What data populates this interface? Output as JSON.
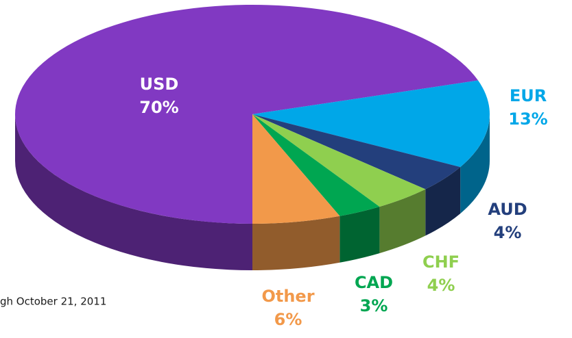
{
  "chart_data": {
    "type": "pie",
    "categories": [
      "USD",
      "EUR",
      "AUD",
      "CHF",
      "CAD",
      "Other"
    ],
    "values": [
      70,
      13,
      4,
      4,
      3,
      6
    ],
    "value_labels": [
      "70%",
      "13%",
      "4%",
      "4%",
      "3%",
      "6%"
    ],
    "colors": [
      "#8139c2",
      "#00a7e8",
      "#233f7c",
      "#8fcf4f",
      "#00a651",
      "#f2994a"
    ],
    "footnote": "gh October 21, 2011"
  }
}
